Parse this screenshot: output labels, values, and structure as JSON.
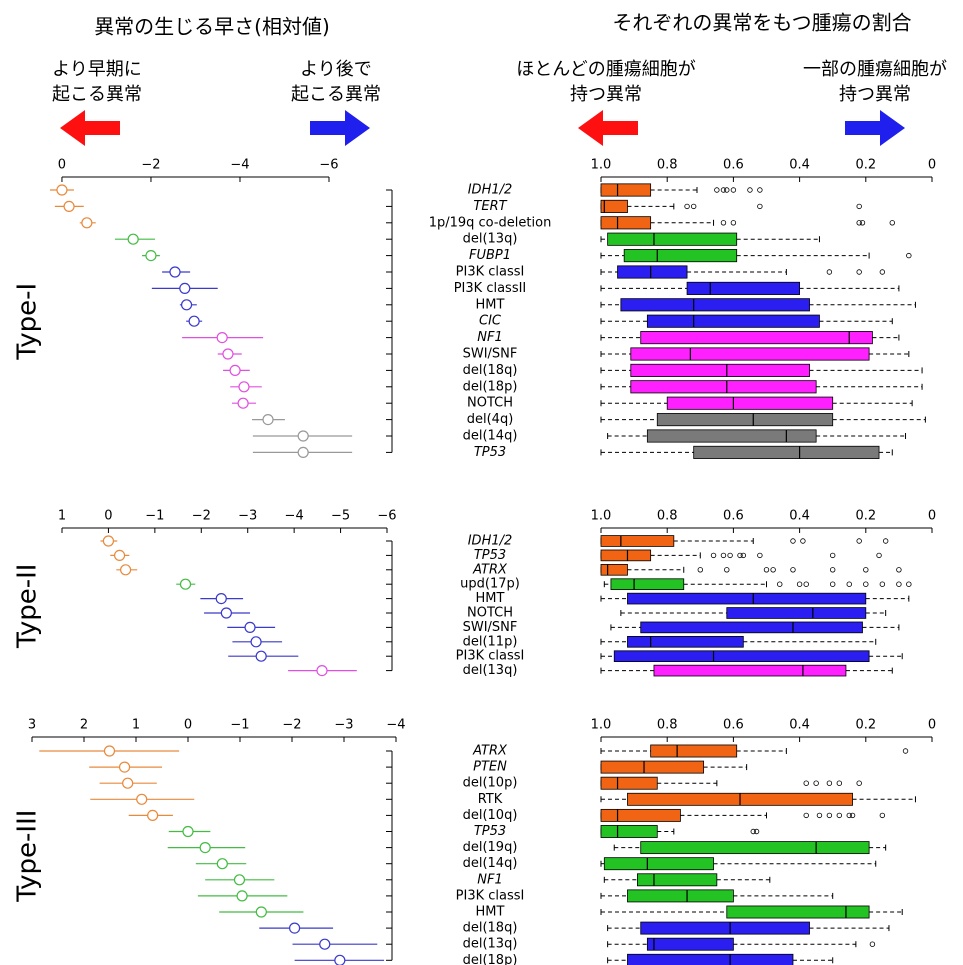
{
  "header": {
    "left_title": "異常の生じる早さ(相対値)",
    "right_title": "それぞれの異常をもつ腫瘍の割合",
    "arrow_labels": [
      [
        "より早期に",
        "起こる異常"
      ],
      [
        "より後で",
        "起こる異常"
      ],
      [
        "ほとんどの腫瘍細胞が",
        "持つ異常"
      ],
      [
        "一部の腫瘍細胞が",
        "持つ異常"
      ]
    ]
  },
  "chart_data": [
    {
      "type": "forest-box",
      "title": "Type-I",
      "categories": [
        "IDH1/2",
        "TERT",
        "1p/19q co-deletion",
        "del(13q)",
        "FUBP1",
        "PI3K classI",
        "PI3K classII",
        "HMT",
        "CIC",
        "NF1",
        "SWI/SNF",
        "del(18q)",
        "del(18p)",
        "NOTCH",
        "del(4q)",
        "del(14q)",
        "TP53"
      ],
      "italic": [
        true,
        true,
        false,
        false,
        true,
        false,
        false,
        false,
        true,
        true,
        false,
        false,
        false,
        false,
        false,
        false,
        true
      ],
      "point_colors": [
        "#e88a3c",
        "#e88a3c",
        "#e88a3c",
        "#44bb44",
        "#44bb44",
        "#3a3acc",
        "#3a3acc",
        "#3a3acc",
        "#3a3acc",
        "#e050e0",
        "#e050e0",
        "#e050e0",
        "#e050e0",
        "#e050e0",
        "#999999",
        "#999999",
        "#999999"
      ],
      "box_colors": [
        "#f06414",
        "#f06414",
        "#f06414",
        "#22c322",
        "#22c322",
        "#2a1ff0",
        "#2a1ff0",
        "#2a1ff0",
        "#2a1ff0",
        "#ff20ff",
        "#ff20ff",
        "#ff20ff",
        "#ff20ff",
        "#ff20ff",
        "#7a7a7a",
        "#7a7a7a",
        "#7a7a7a"
      ],
      "estimates": [
        0,
        -0.16,
        -0.56,
        -1.6,
        -2.0,
        -2.54,
        -2.76,
        -2.8,
        -2.97,
        -3.6,
        -3.73,
        -3.89,
        -4.09,
        -4.07,
        -4.63,
        -5.42,
        -5.42
      ],
      "ci": [
        [
          0.27,
          -0.27
        ],
        [
          0.16,
          -0.49
        ],
        [
          -0.4,
          -0.76
        ],
        [
          -1.19,
          -2.09
        ],
        [
          -1.8,
          -2.2
        ],
        [
          -2.25,
          -2.88
        ],
        [
          -2.02,
          -3.5
        ],
        [
          -2.65,
          -3.03
        ],
        [
          -2.79,
          -3.15
        ],
        [
          -2.7,
          -4.52
        ],
        [
          -3.5,
          -4.04
        ],
        [
          -3.62,
          -4.22
        ],
        [
          -3.78,
          -4.49
        ],
        [
          -3.82,
          -4.36
        ],
        [
          -4.27,
          -5.01
        ],
        [
          -4.29,
          -6.52
        ],
        [
          -4.29,
          -6.52
        ]
      ],
      "xlim": [
        0.3,
        -6.6
      ],
      "xticks": [
        0,
        {
          "value": -2,
          "label": "−2"
        },
        {
          "value": -4,
          "label": "−4"
        },
        {
          "value": -6,
          "label": "−6"
        }
      ],
      "boxes": [
        {
          "max": 1.0,
          "upper": 1.0,
          "median": 0.95,
          "lower": 0.85,
          "min": 0.71,
          "outliers": [
            0.65,
            0.63,
            0.62,
            0.6,
            0.55,
            0.52
          ]
        },
        {
          "max": 1.0,
          "upper": 1.0,
          "median": 0.99,
          "lower": 0.92,
          "min": 0.78,
          "outliers": [
            0.74,
            0.72,
            0.52,
            0.22
          ]
        },
        {
          "max": 1.0,
          "upper": 1.0,
          "median": 0.95,
          "lower": 0.85,
          "min": 0.66,
          "outliers": [
            0.63,
            0.6,
            0.22,
            0.21,
            0.12
          ]
        },
        {
          "max": 1.0,
          "upper": 0.98,
          "median": 0.84,
          "lower": 0.59,
          "min": 0.34
        },
        {
          "max": 1.0,
          "upper": 0.93,
          "median": 0.83,
          "lower": 0.59,
          "min": 0.19,
          "outliers": [
            0.07
          ]
        },
        {
          "max": 1.0,
          "upper": 0.95,
          "median": 0.85,
          "lower": 0.74,
          "min": 0.44,
          "outliers": [
            0.31,
            0.22,
            0.15
          ]
        },
        {
          "max": 1.0,
          "upper": 0.74,
          "median": 0.67,
          "lower": 0.4,
          "min": 0.1
        },
        {
          "max": 1.0,
          "upper": 0.94,
          "median": 0.72,
          "lower": 0.37,
          "min": 0.05
        },
        {
          "max": 1.0,
          "upper": 0.86,
          "median": 0.72,
          "lower": 0.34,
          "min": 0.12
        },
        {
          "max": 1.0,
          "upper": 0.88,
          "median": 0.25,
          "lower": 0.18,
          "min": 0.1
        },
        {
          "max": 1.0,
          "upper": 0.91,
          "median": 0.73,
          "lower": 0.19,
          "min": 0.07
        },
        {
          "max": 1.0,
          "upper": 0.91,
          "median": 0.62,
          "lower": 0.37,
          "min": 0.03
        },
        {
          "max": 1.0,
          "upper": 0.91,
          "median": 0.62,
          "lower": 0.35,
          "min": 0.03
        },
        {
          "max": 1.0,
          "upper": 0.8,
          "median": 0.6,
          "lower": 0.3,
          "min": 0.06
        },
        {
          "max": 1.0,
          "upper": 0.83,
          "median": 0.54,
          "lower": 0.3,
          "min": 0.02
        },
        {
          "max": 0.98,
          "upper": 0.86,
          "median": 0.44,
          "lower": 0.35,
          "min": 0.08
        },
        {
          "max": 1.0,
          "upper": 0.72,
          "median": 0.4,
          "lower": 0.16,
          "min": 0.12
        }
      ],
      "box_xlim": [
        1,
        0
      ],
      "box_xticks": [
        {
          "value": 1,
          "label": "1.0"
        },
        0.8,
        0.6,
        0.4,
        0.2,
        0
      ]
    },
    {
      "type": "forest-box",
      "title": "Type-II",
      "categories": [
        "IDH1/2",
        "TP53",
        "ATRX",
        "upd(17p)",
        "HMT",
        "NOTCH",
        "SWI/SNF",
        "del(11p)",
        "PI3K classI",
        "del(13q)"
      ],
      "italic": [
        true,
        true,
        true,
        false,
        false,
        false,
        false,
        false,
        false,
        false
      ],
      "point_colors": [
        "#e88a3c",
        "#e88a3c",
        "#e88a3c",
        "#44bb44",
        "#3a3acc",
        "#3a3acc",
        "#3a3acc",
        "#3a3acc",
        "#3a3acc",
        "#e050e0"
      ],
      "box_colors": [
        "#f06414",
        "#f06414",
        "#f06414",
        "#22c322",
        "#2a1ff0",
        "#2a1ff0",
        "#2a1ff0",
        "#2a1ff0",
        "#2a1ff0",
        "#ff20ff"
      ],
      "estimates": [
        0,
        -0.24,
        -0.37,
        -1.66,
        -2.43,
        -2.54,
        -3.05,
        -3.18,
        -3.29,
        -4.6
      ],
      "ci": [
        [
          0.17,
          -0.19
        ],
        [
          -0.04,
          -0.45
        ],
        [
          -0.17,
          -0.62
        ],
        [
          -1.46,
          -1.87
        ],
        [
          -1.98,
          -2.9
        ],
        [
          -2.06,
          -3.05
        ],
        [
          -2.56,
          -3.59
        ],
        [
          -2.67,
          -3.74
        ],
        [
          -2.58,
          -4.09
        ],
        [
          -3.87,
          -5.35
        ]
      ],
      "xlim": [
        1,
        -6
      ],
      "xticks": [
        1,
        0,
        {
          "value": -1,
          "label": "−1"
        },
        {
          "value": -2,
          "label": "−2"
        },
        {
          "value": -3,
          "label": "−3"
        },
        {
          "value": -4,
          "label": "−4"
        },
        {
          "value": -5,
          "label": "−5"
        },
        {
          "value": -6,
          "label": "−6"
        }
      ],
      "boxes": [
        {
          "max": 1.0,
          "upper": 1.0,
          "median": 0.94,
          "lower": 0.78,
          "min": 0.54,
          "outliers": [
            0.42,
            0.39,
            0.22,
            0.14
          ]
        },
        {
          "max": 1.0,
          "upper": 1.0,
          "median": 0.92,
          "lower": 0.85,
          "min": 0.7,
          "outliers": [
            0.66,
            0.63,
            0.61,
            0.58,
            0.57,
            0.52,
            0.3,
            0.16
          ]
        },
        {
          "max": 1.0,
          "upper": 1.0,
          "median": 0.98,
          "lower": 0.92,
          "min": 0.75,
          "outliers": [
            0.7,
            0.62,
            0.5,
            0.48,
            0.42,
            0.3,
            0.2,
            0.1
          ]
        },
        {
          "max": 0.99,
          "upper": 0.97,
          "median": 0.9,
          "lower": 0.75,
          "min": 0.5,
          "outliers": [
            0.46,
            0.4,
            0.38,
            0.3,
            0.25,
            0.2,
            0.15,
            0.1,
            0.07
          ]
        },
        {
          "max": 1.0,
          "upper": 0.92,
          "median": 0.54,
          "lower": 0.2,
          "min": 0.07
        },
        {
          "max": 0.94,
          "upper": 0.62,
          "median": 0.36,
          "lower": 0.2,
          "min": 0.14
        },
        {
          "max": 0.97,
          "upper": 0.88,
          "median": 0.42,
          "lower": 0.21,
          "min": 0.1
        },
        {
          "max": 1.0,
          "upper": 0.92,
          "median": 0.85,
          "lower": 0.57,
          "min": 0.17
        },
        {
          "max": 1.0,
          "upper": 0.96,
          "median": 0.66,
          "lower": 0.19,
          "min": 0.09
        },
        {
          "max": 1.0,
          "upper": 0.84,
          "median": 0.39,
          "lower": 0.26,
          "min": 0.12
        }
      ],
      "box_xlim": [
        1,
        0
      ],
      "box_xticks": [
        {
          "value": 1,
          "label": "1.0"
        },
        0.8,
        0.6,
        0.4,
        0.2,
        0
      ]
    },
    {
      "type": "forest-box",
      "title": "Type-III",
      "categories": [
        "ATRX",
        "PTEN",
        "del(10p)",
        "RTK",
        "del(10q)",
        "TP53",
        "del(19q)",
        "del(14q)",
        "NF1",
        "PI3K classI",
        "HMT",
        "del(18q)",
        "del(13q)",
        "del(18p)"
      ],
      "italic": [
        true,
        true,
        false,
        false,
        false,
        true,
        false,
        false,
        true,
        false,
        false,
        false,
        false,
        false
      ],
      "point_colors": [
        "#e88a3c",
        "#e88a3c",
        "#e88a3c",
        "#e88a3c",
        "#e88a3c",
        "#44bb44",
        "#44bb44",
        "#44bb44",
        "#44bb44",
        "#44bb44",
        "#44bb44",
        "#3a3acc",
        "#3a3acc",
        "#3a3acc"
      ],
      "box_colors": [
        "#f06414",
        "#f06414",
        "#f06414",
        "#f06414",
        "#f06414",
        "#22c322",
        "#22c322",
        "#22c322",
        "#22c322",
        "#22c322",
        "#22c322",
        "#2a1ff0",
        "#2a1ff0",
        "#2a1ff0"
      ],
      "estimates": [
        1.51,
        1.22,
        1.16,
        0.89,
        0.68,
        0,
        -0.33,
        -0.66,
        -0.99,
        -1.04,
        -1.41,
        -2.05,
        -2.63,
        -2.92
      ],
      "ci": [
        [
          2.86,
          0.17
        ],
        [
          1.9,
          0.5
        ],
        [
          1.7,
          0.6
        ],
        [
          1.88,
          -0.12
        ],
        [
          1.14,
          0.29
        ],
        [
          0.37,
          -0.43
        ],
        [
          0.39,
          -1.1
        ],
        [
          -0.15,
          -1.12
        ],
        [
          -0.33,
          -1.66
        ],
        [
          -0.19,
          -1.91
        ],
        [
          -0.6,
          -2.22
        ],
        [
          -1.37,
          -2.79
        ],
        [
          -2.01,
          -3.64
        ],
        [
          -2.05,
          -3.77
        ]
      ],
      "xlim": [
        3,
        -4
      ],
      "xticks": [
        3,
        2,
        1,
        0,
        {
          "value": -1,
          "label": "−1"
        },
        {
          "value": -2,
          "label": "−2"
        },
        {
          "value": -3,
          "label": "−3"
        },
        {
          "value": -4,
          "label": "−4"
        }
      ],
      "boxes": [
        {
          "max": 1.0,
          "upper": 0.85,
          "median": 0.77,
          "lower": 0.59,
          "min": 0.44,
          "outliers": [
            0.08
          ]
        },
        {
          "max": 1.0,
          "upper": 1.0,
          "median": 0.87,
          "lower": 0.69,
          "min": 0.56
        },
        {
          "max": 1.0,
          "upper": 1.0,
          "median": 0.95,
          "lower": 0.83,
          "min": 0.65,
          "outliers": [
            0.38,
            0.35,
            0.31,
            0.28,
            0.22
          ]
        },
        {
          "max": 1.0,
          "upper": 0.92,
          "median": 0.58,
          "lower": 0.24,
          "min": 0.05
        },
        {
          "max": 1.0,
          "upper": 1.0,
          "median": 0.95,
          "lower": 0.76,
          "min": 0.5,
          "outliers": [
            0.38,
            0.34,
            0.31,
            0.28,
            0.25,
            0.24,
            0.15
          ]
        },
        {
          "max": 1.0,
          "upper": 1.0,
          "median": 0.95,
          "lower": 0.83,
          "min": 0.78,
          "outliers": [
            0.54,
            0.53
          ]
        },
        {
          "max": 0.96,
          "upper": 0.88,
          "median": 0.35,
          "lower": 0.19,
          "min": 0.14
        },
        {
          "max": 1.0,
          "upper": 0.99,
          "median": 0.86,
          "lower": 0.66,
          "min": 0.17
        },
        {
          "max": 0.99,
          "upper": 0.89,
          "median": 0.84,
          "lower": 0.65,
          "min": 0.49
        },
        {
          "max": 1.0,
          "upper": 0.92,
          "median": 0.74,
          "lower": 0.6,
          "min": 0.3
        },
        {
          "max": 1.0,
          "upper": 0.62,
          "median": 0.26,
          "lower": 0.19,
          "min": 0.09
        },
        {
          "max": 0.98,
          "upper": 0.88,
          "median": 0.61,
          "lower": 0.37,
          "min": 0.13
        },
        {
          "max": 0.98,
          "upper": 0.86,
          "median": 0.84,
          "lower": 0.6,
          "min": 0.23,
          "outliers": [
            0.18
          ]
        },
        {
          "max": 0.98,
          "upper": 0.92,
          "median": 0.61,
          "lower": 0.42,
          "min": 0.3
        }
      ],
      "box_xlim": [
        1,
        0
      ],
      "box_xticks": [
        {
          "value": 1,
          "label": "1.0"
        },
        0.8,
        0.6,
        0.4,
        0.2,
        0
      ]
    }
  ]
}
